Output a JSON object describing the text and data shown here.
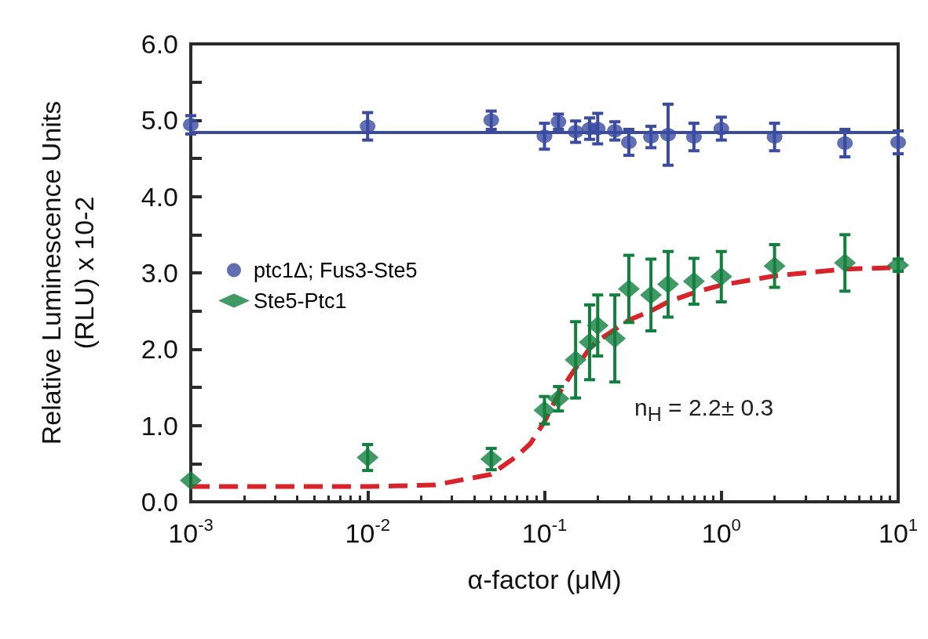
{
  "chart_data": {
    "type": "scatter",
    "xlabel": "α-factor (μM)",
    "ylabel": "Relative Luminescence Units\n(RLU) x 10-2",
    "log": "x",
    "grid": false,
    "legend": "left",
    "xlim": [
      0.001,
      10
    ],
    "xticks": [
      {
        "value": 0.001,
        "label": "10$^{-3}$"
      },
      {
        "value": 0.01,
        "label": "10$^{-2}$"
      },
      {
        "value": 0.1,
        "label": "10$^{-1}$"
      },
      {
        "value": 1,
        "label": "10$^{0}$"
      },
      {
        "value": 10,
        "label": "10$^{1}$"
      }
    ],
    "ylim": [
      0,
      6
    ],
    "yticks": [
      {
        "value": 0,
        "label": "0.0"
      },
      {
        "value": 1,
        "label": "1.0"
      },
      {
        "value": 2,
        "label": "2.0"
      },
      {
        "value": 3,
        "label": "3.0"
      },
      {
        "value": 4,
        "label": "4.0"
      },
      {
        "value": 5,
        "label": "5.0"
      },
      {
        "value": 6,
        "label": "6.0"
      }
    ],
    "annotations": [
      "n$_{H}$ = 2.2± 0.3"
    ],
    "series": [
      {
        "name": "ptc1Δ; Fus3-Ste5",
        "color": "#3a4ba0",
        "marker": "circle",
        "x": [
          0.001,
          0.01,
          0.05,
          0.1,
          0.12,
          0.15,
          0.18,
          0.2,
          0.25,
          0.3,
          0.4,
          0.5,
          0.7,
          1,
          2,
          5,
          10
        ],
        "values": [
          4.94,
          4.92,
          5.0,
          4.79,
          4.98,
          4.85,
          4.89,
          4.89,
          4.86,
          4.71,
          4.78,
          4.81,
          4.78,
          4.89,
          4.78,
          4.7,
          4.71
        ],
        "errors": [
          0.12,
          0.18,
          0.12,
          0.17,
          0.1,
          0.14,
          0.14,
          0.2,
          0.12,
          0.17,
          0.14,
          0.4,
          0.18,
          0.15,
          0.18,
          0.18,
          0.15
        ]
      },
      {
        "type": "line",
        "color": "#3a4ba0",
        "marker": "none",
        "line_style": "solid",
        "x": [
          0.001,
          10
        ],
        "values": [
          4.84,
          4.84
        ]
      },
      {
        "name": "Ste5-Ptc1",
        "color": "#127f3e",
        "marker": "diamond",
        "x": [
          0.001,
          0.01,
          0.05,
          0.1,
          0.12,
          0.15,
          0.18,
          0.2,
          0.25,
          0.3,
          0.4,
          0.5,
          0.7,
          1,
          2,
          5,
          10
        ],
        "values": [
          0.28,
          0.58,
          0.56,
          1.2,
          1.35,
          1.86,
          2.09,
          2.31,
          2.14,
          2.79,
          2.71,
          2.85,
          2.89,
          2.95,
          3.09,
          3.13,
          3.1
        ],
        "errors": [
          null,
          0.17,
          0.14,
          0.18,
          0.16,
          0.5,
          0.49,
          0.4,
          0.57,
          0.44,
          0.47,
          0.43,
          0.3,
          0.33,
          0.28,
          0.37,
          0.08
        ]
      },
      {
        "type": "line",
        "color": "#d9232a",
        "marker": "none",
        "line_style": "dashed",
        "x": [
          0.001,
          0.003,
          0.01,
          0.024,
          0.05,
          0.07,
          0.083,
          0.1,
          0.12,
          0.14,
          0.15,
          0.18,
          0.2,
          0.3,
          0.4,
          0.5,
          0.7,
          1,
          2,
          5,
          10
        ],
        "values": [
          0.2,
          0.2,
          0.2,
          0.22,
          0.36,
          0.6,
          0.76,
          1.05,
          1.41,
          1.65,
          1.75,
          2.01,
          2.11,
          2.38,
          2.5,
          2.62,
          2.74,
          2.84,
          2.96,
          3.05,
          3.07
        ]
      }
    ]
  }
}
